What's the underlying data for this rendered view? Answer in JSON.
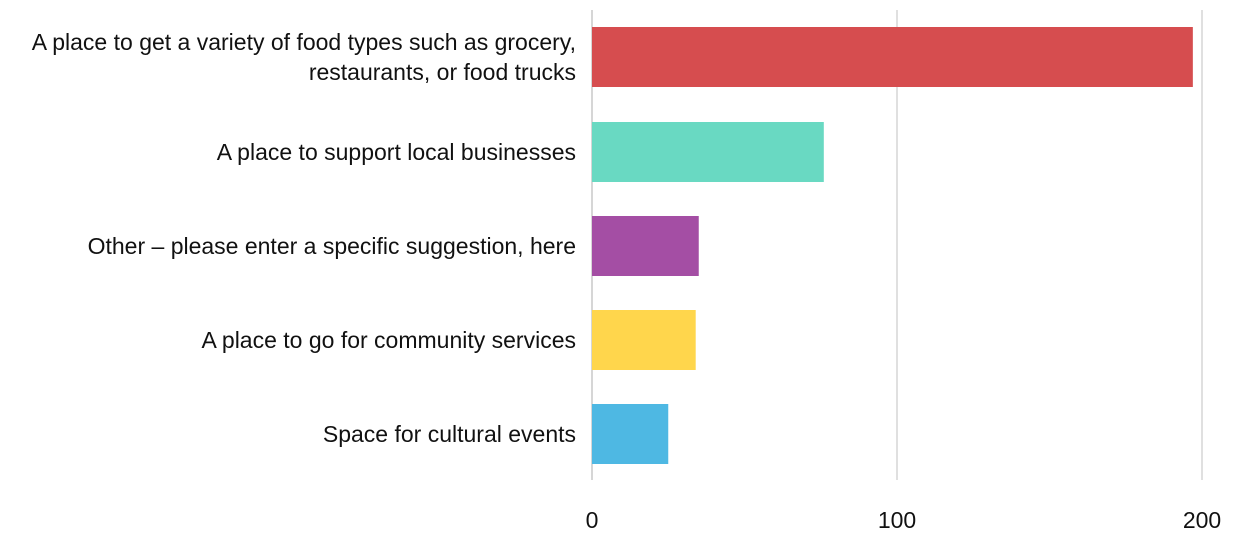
{
  "chart_data": {
    "type": "bar",
    "orientation": "horizontal",
    "categories": [
      [
        "A place to get a variety of food types such as grocery,",
        "restaurants, or food trucks"
      ],
      [
        "A place to support local businesses"
      ],
      [
        "Other – please enter a specific suggestion, here"
      ],
      [
        "A place to go for community services"
      ],
      [
        "Space for cultural events"
      ]
    ],
    "values": [
      197,
      76,
      35,
      34,
      25
    ],
    "colors": [
      "#d64d4f",
      "#69d9c2",
      "#a44ea4",
      "#ffd64c",
      "#4eb8e3"
    ],
    "xlim": [
      0,
      200
    ],
    "x_ticks": [
      0,
      100,
      200
    ],
    "grid": true,
    "legend": "none"
  }
}
